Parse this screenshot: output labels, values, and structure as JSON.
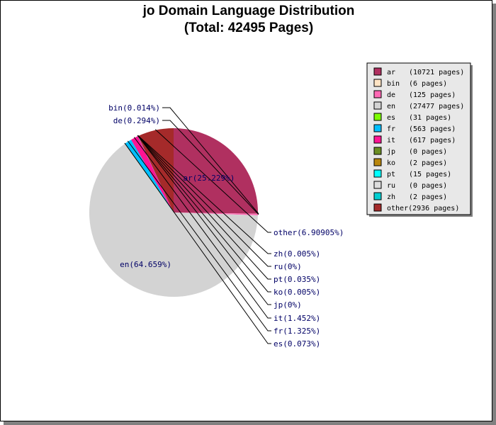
{
  "chart_data": {
    "type": "pie",
    "title": "jo Domain Language Distribution",
    "subtitle": "(Total: 42495 Pages)",
    "slices": [
      {
        "code": "ar",
        "pages": 10721,
        "pct": 25.229,
        "label": "ar(25.229%)",
        "legend": "(10721 pages)",
        "color": "#b03060"
      },
      {
        "code": "bin",
        "pages": 6,
        "pct": 0.014,
        "label": "bin(0.014%)",
        "legend": "(6 pages)",
        "color": "#ffe4c4"
      },
      {
        "code": "de",
        "pages": 125,
        "pct": 0.294,
        "label": "de(0.294%)",
        "legend": "(125 pages)",
        "color": "#ff69b4"
      },
      {
        "code": "en",
        "pages": 27477,
        "pct": 64.659,
        "label": "en(64.659%)",
        "legend": "(27477 pages)",
        "color": "#d3d3d3"
      },
      {
        "code": "es",
        "pages": 31,
        "pct": 0.073,
        "label": "es(0.073%)",
        "legend": "(31 pages)",
        "color": "#7cfc00"
      },
      {
        "code": "fr",
        "pages": 563,
        "pct": 1.325,
        "label": "fr(1.325%)",
        "legend": "(563 pages)",
        "color": "#00bfff"
      },
      {
        "code": "it",
        "pages": 617,
        "pct": 1.452,
        "label": "it(1.452%)",
        "legend": "(617 pages)",
        "color": "#ff1493"
      },
      {
        "code": "jp",
        "pages": 0,
        "pct": 0,
        "label": "jp(0%)",
        "legend": "(0 pages)",
        "color": "#6b8e23"
      },
      {
        "code": "ko",
        "pages": 2,
        "pct": 0.005,
        "label": "ko(0.005%)",
        "legend": "(2 pages)",
        "color": "#b8860b"
      },
      {
        "code": "pt",
        "pages": 15,
        "pct": 0.035,
        "label": "pt(0.035%)",
        "legend": "(15 pages)",
        "color": "#00ffff"
      },
      {
        "code": "ru",
        "pages": 0,
        "pct": 0,
        "label": "ru(0%)",
        "legend": "(0 pages)",
        "color": "#dcdcdc"
      },
      {
        "code": "zh",
        "pages": 2,
        "pct": 0.005,
        "label": "zh(0.005%)",
        "legend": "(2 pages)",
        "color": "#00ced1"
      },
      {
        "code": "other",
        "pages": 2936,
        "pct": 6.90905,
        "label": "other(6.90905%)",
        "legend": "(2936 pages)",
        "color": "#a52a2a"
      }
    ]
  }
}
